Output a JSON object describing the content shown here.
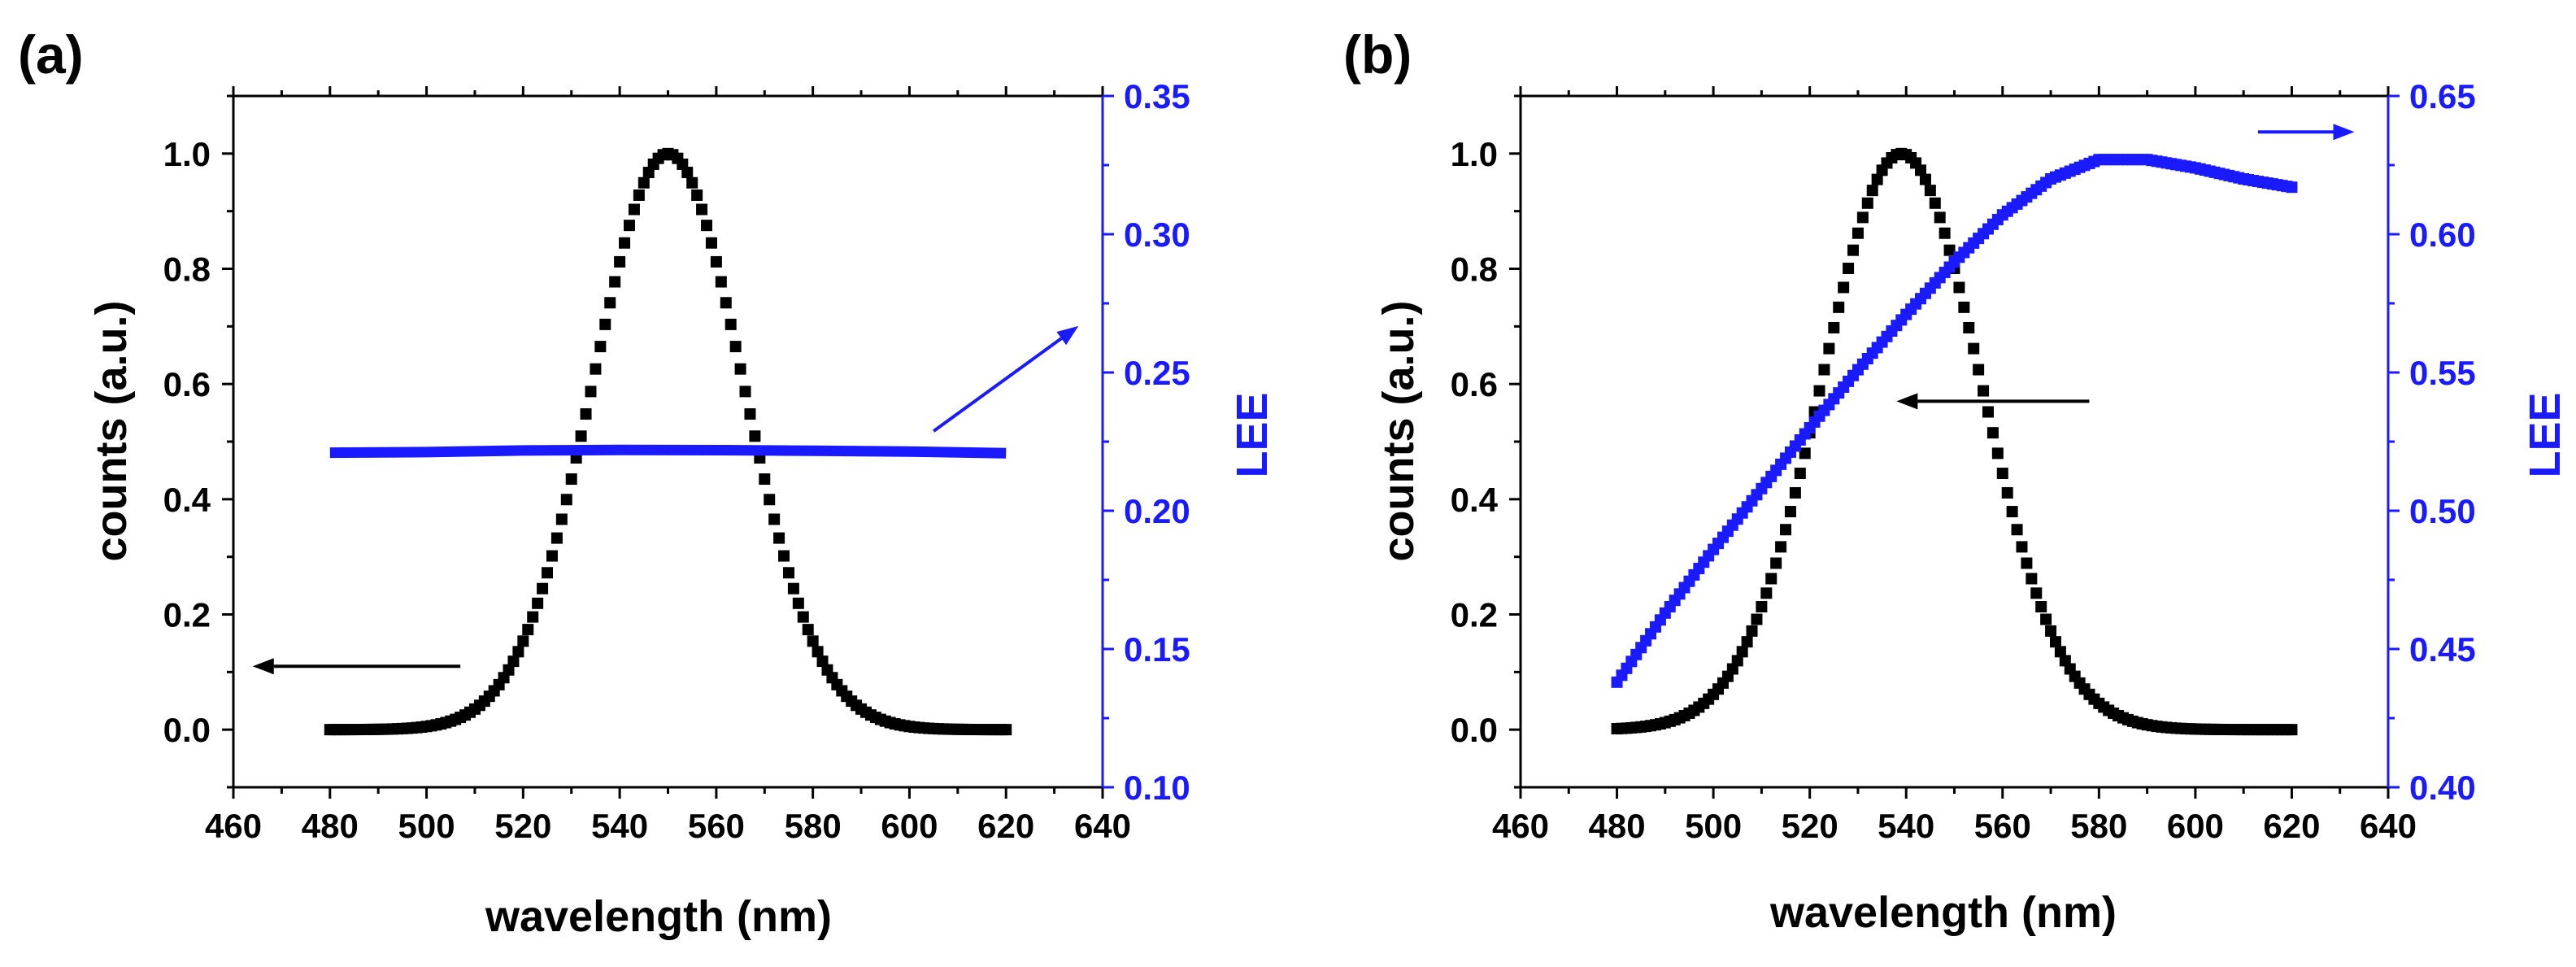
{
  "chart_data": [
    {
      "panel_label": "(a)",
      "type": "scatter+line",
      "xlabel": "wavelength (nm)",
      "ylabel": "counts (a.u.)",
      "y2label": "LEE",
      "xlim": [
        460,
        640
      ],
      "ylim": [
        -0.1,
        1.1
      ],
      "y2lim": [
        0.1,
        0.35
      ],
      "xticks": [
        "460",
        "480",
        "500",
        "520",
        "540",
        "560",
        "580",
        "600",
        "620",
        "640"
      ],
      "yticks": [
        "0.0",
        "0.2",
        "0.4",
        "0.6",
        "0.8",
        "1.0"
      ],
      "y2ticks": [
        "0.10",
        "0.15",
        "0.20",
        "0.25",
        "0.30",
        "0.35"
      ],
      "series": [
        {
          "name": "counts",
          "axis": "left",
          "color": "#000000",
          "marker": "square",
          "model": "gaussian",
          "center": 550,
          "sigma": 15.5,
          "amplitude": 1.0,
          "x_range": [
            480,
            620
          ],
          "x_step": 1
        },
        {
          "name": "LEE",
          "axis": "right",
          "color": "#1a1aff",
          "marker": "line",
          "x": [
            480,
            500,
            520,
            540,
            560,
            580,
            600,
            620
          ],
          "y": [
            0.221,
            0.2212,
            0.2218,
            0.222,
            0.2219,
            0.2217,
            0.2214,
            0.2208
          ]
        }
      ],
      "arrows": [
        {
          "target_axis": "left",
          "color": "#000000",
          "from": [
            507,
            0.11
          ],
          "to": [
            464,
            0.11
          ]
        },
        {
          "target_axis": "right",
          "color": "#1a1aff",
          "from": [
            605,
            0.2288
          ],
          "to": [
            635,
            0.2668
          ]
        }
      ]
    },
    {
      "panel_label": "(b)",
      "type": "scatter",
      "xlabel": "wavelength (nm)",
      "ylabel": "counts (a.u.)",
      "y2label": "LEE",
      "xlim": [
        460,
        640
      ],
      "ylim": [
        -0.1,
        1.1
      ],
      "y2lim": [
        0.4,
        0.65
      ],
      "xticks": [
        "460",
        "480",
        "500",
        "520",
        "540",
        "560",
        "580",
        "600",
        "620",
        "640"
      ],
      "yticks": [
        "0.0",
        "0.2",
        "0.4",
        "0.6",
        "0.8",
        "1.0"
      ],
      "y2ticks": [
        "0.40",
        "0.45",
        "0.50",
        "0.55",
        "0.60",
        "0.65"
      ],
      "series": [
        {
          "name": "counts",
          "axis": "left",
          "color": "#000000",
          "marker": "square",
          "model": "gaussian",
          "center": 539,
          "sigma": 16.5,
          "amplitude": 1.0,
          "x_range": [
            480,
            620
          ],
          "x_step": 1
        },
        {
          "name": "LEE",
          "axis": "right",
          "color": "#1a1aff",
          "marker": "square",
          "x": [
            480,
            490,
            500,
            510,
            520,
            530,
            540,
            550,
            560,
            570,
            580,
            590,
            600,
            610,
            620
          ],
          "y": [
            0.438,
            0.463,
            0.486,
            0.508,
            0.53,
            0.551,
            0.571,
            0.59,
            0.607,
            0.62,
            0.627,
            0.627,
            0.624,
            0.62,
            0.617
          ]
        }
      ],
      "arrows": [
        {
          "target_axis": "left",
          "color": "#000000",
          "from": [
            578,
            0.57
          ],
          "to": [
            538,
            0.57
          ]
        },
        {
          "target_axis": "right",
          "color": "#1a1aff",
          "from": [
            613,
            0.637
          ],
          "to": [
            633,
            0.637
          ]
        }
      ]
    }
  ]
}
